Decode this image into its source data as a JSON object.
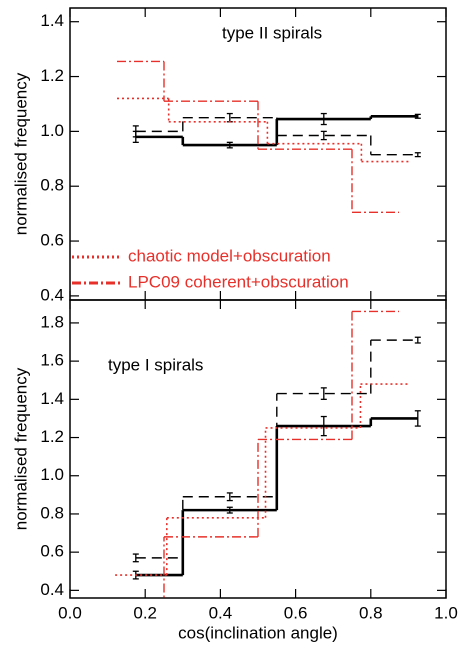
{
  "chart_data": [
    {
      "type": "step",
      "label": "type II spirals",
      "ylabel": "normalised frequency",
      "ylim": [
        0.385,
        1.45
      ],
      "yticks": [
        0.4,
        0.6,
        0.8,
        {
          "value": 1.0,
          "label": "1.0"
        },
        1.2,
        1.4
      ],
      "legend": "lower left",
      "series": [
        {
          "color": "#000000",
          "linestyle": "solid",
          "x": [
            0.175,
            0.425,
            0.675,
            0.925
          ],
          "values": [
            0.98,
            0.95,
            1.045,
            1.055
          ],
          "errors": [
            0.02,
            0.01,
            0.02,
            0.007
          ]
        },
        {
          "color": "#000000",
          "linestyle": "dashed",
          "x": [
            0.175,
            0.425,
            0.675,
            0.925
          ],
          "values": [
            1.0,
            1.05,
            0.985,
            0.915
          ],
          "errors": [
            0.02,
            0.015,
            0.015,
            0.007
          ]
        },
        {
          "name": "chaotic model+obscuration",
          "color": "#e8302a",
          "linestyle": "dotted",
          "x": [
            0.125,
            0.4,
            0.65,
            0.9
          ],
          "values": [
            1.12,
            1.035,
            0.955,
            0.89
          ]
        },
        {
          "name": "LPC09 coherent+obscuration",
          "color": "#e8302a",
          "linestyle": "dashdot",
          "x": [
            0.125,
            0.375,
            0.625,
            0.875
          ],
          "values": [
            1.255,
            1.11,
            0.935,
            0.705
          ]
        }
      ]
    },
    {
      "type": "step",
      "label": "type I spirals",
      "ylabel": "normalised frequency",
      "xlabel": "cos(inclination angle)",
      "xlim": [
        0,
        1
      ],
      "xticks": [
        {
          "value": 0,
          "label": "0.0"
        },
        0.2,
        0.4,
        0.6,
        0.8,
        {
          "value": 1,
          "label": "1.0"
        }
      ],
      "ylim": [
        0.36,
        1.92
      ],
      "yticks": [
        0.4,
        0.6,
        0.8,
        {
          "value": 1.0,
          "label": "1.0"
        },
        1.2,
        1.4,
        1.6,
        1.8
      ],
      "series": [
        {
          "color": "#000000",
          "linestyle": "solid",
          "x": [
            0.175,
            0.425,
            0.675,
            0.925
          ],
          "values": [
            0.48,
            0.82,
            1.26,
            1.3
          ],
          "errors": [
            0.02,
            0.015,
            0.05,
            0.04
          ]
        },
        {
          "color": "#000000",
          "linestyle": "dashed",
          "x": [
            0.175,
            0.425,
            0.675,
            0.925
          ],
          "values": [
            0.57,
            0.89,
            1.43,
            1.71
          ],
          "errors": [
            0.02,
            0.02,
            0.03,
            0.015
          ]
        },
        {
          "color": "#e8302a",
          "linestyle": "dotted",
          "x": [
            0.12,
            0.395,
            0.645,
            0.9
          ],
          "values": [
            0.48,
            0.78,
            1.25,
            1.48
          ]
        },
        {
          "color": "#e8302a",
          "linestyle": "dashdot",
          "x": [
            0.125,
            0.375,
            0.625,
            0.875
          ],
          "values": [
            0.3,
            0.68,
            1.19,
            1.86
          ]
        }
      ]
    }
  ]
}
